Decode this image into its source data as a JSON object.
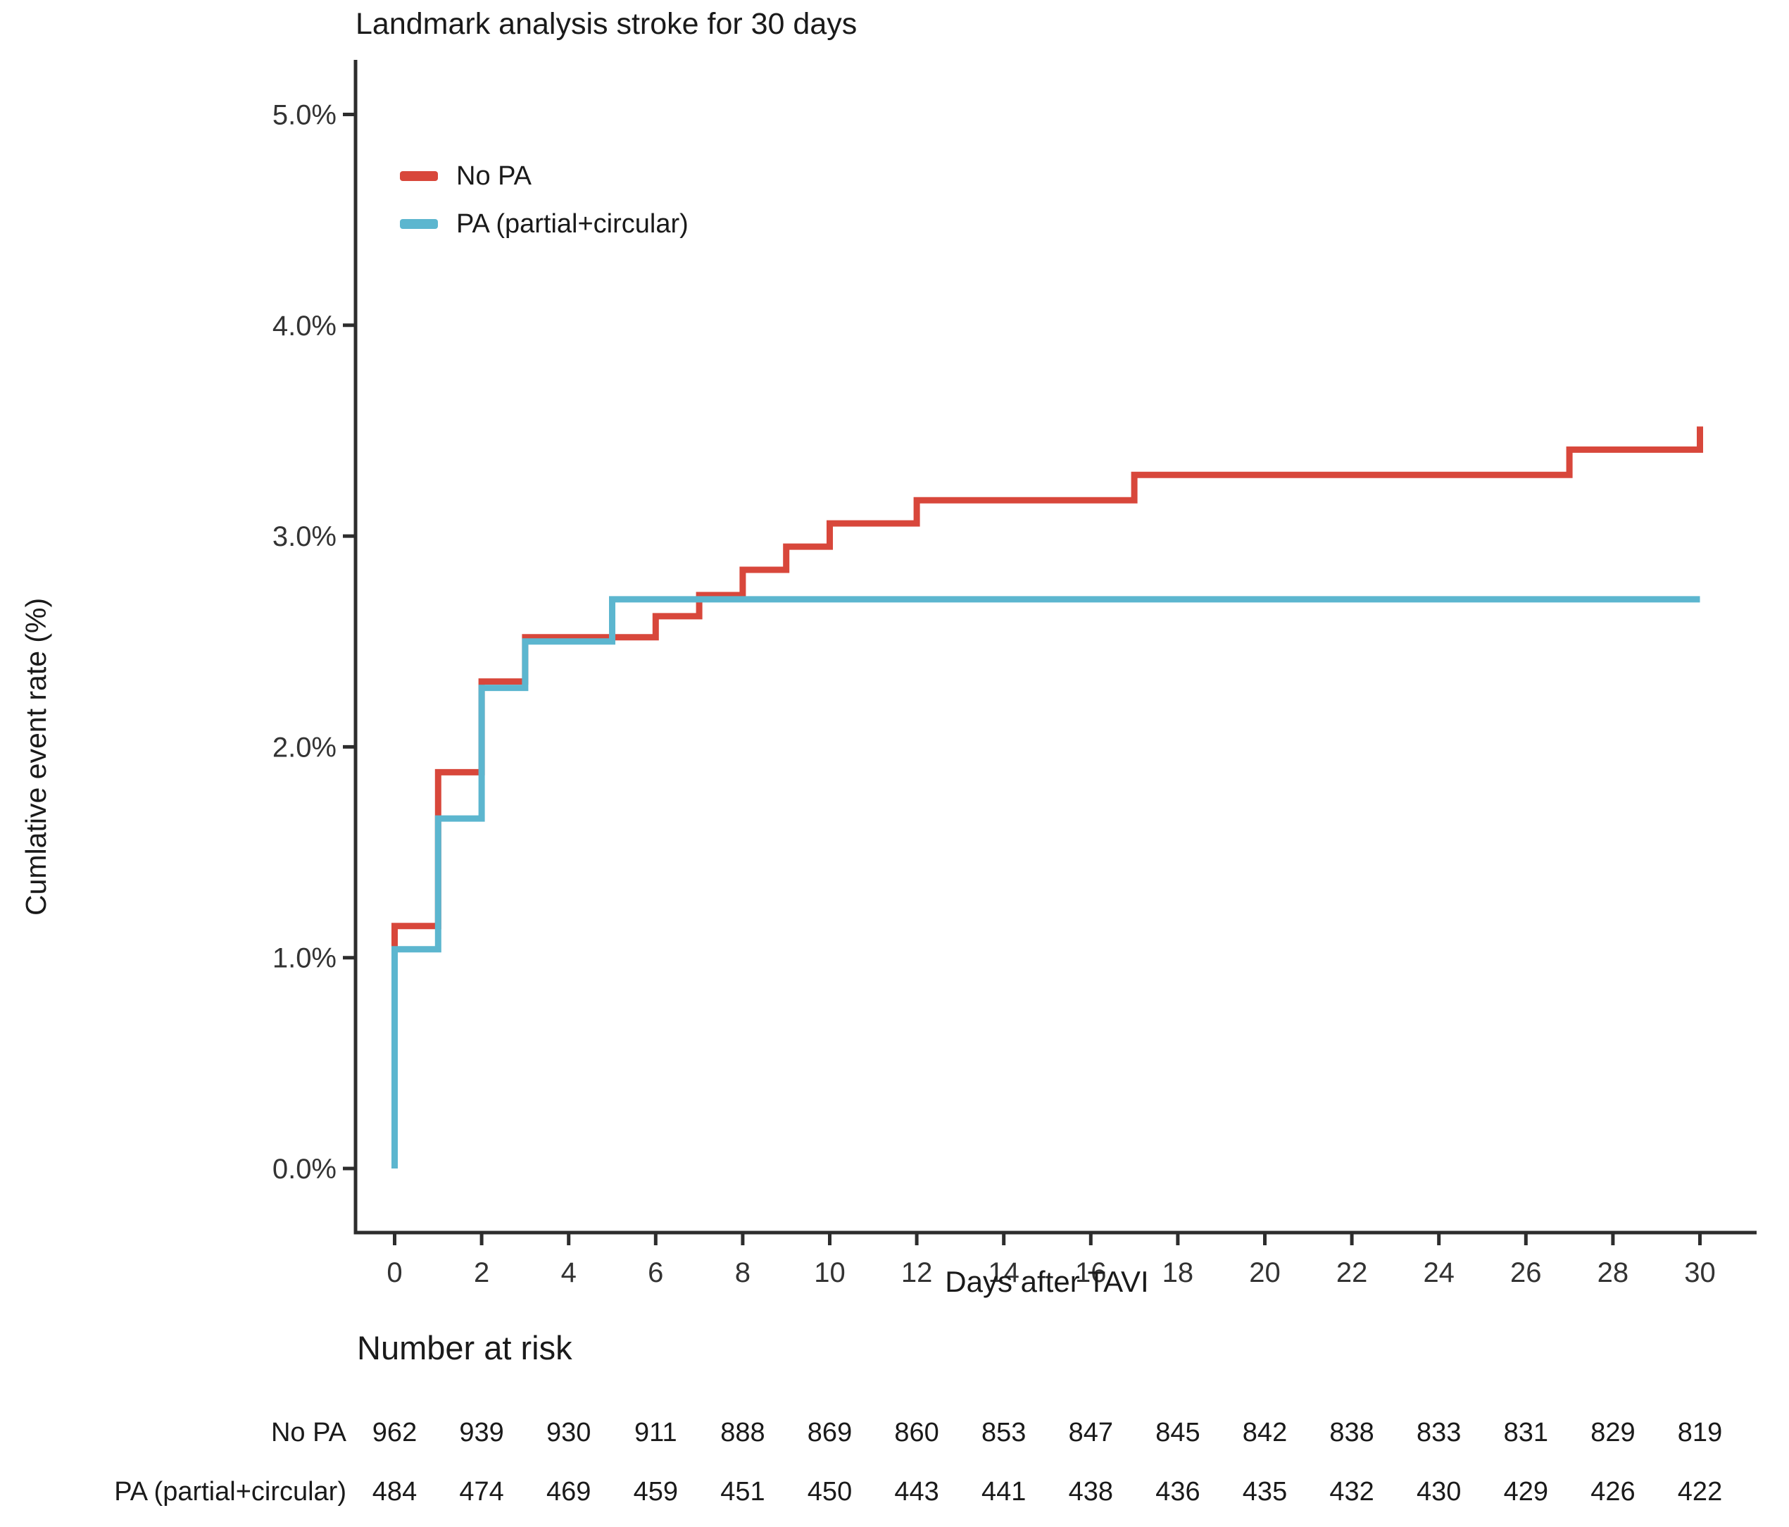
{
  "chart_data": {
    "type": "line",
    "subtype": "step",
    "title": "Landmark analysis stroke for 30 days",
    "xlabel": "Days after TAVI",
    "ylabel": "Cumlative event rate (%)",
    "xlim": [
      0,
      30
    ],
    "ylim": [
      0,
      5
    ],
    "x_ticks": [
      0,
      2,
      4,
      6,
      8,
      10,
      12,
      14,
      16,
      18,
      20,
      22,
      24,
      26,
      28,
      30
    ],
    "y_ticks": [
      0,
      1,
      2,
      3,
      4,
      5
    ],
    "y_tick_labels": [
      "0.0%",
      "1.0%",
      "2.0%",
      "3.0%",
      "4.0%",
      "5.0%"
    ],
    "grid": false,
    "legend_position": "inside-top-left",
    "axis_color": "#2d2d2d",
    "series": [
      {
        "name": "No PA",
        "color": "#d8473b",
        "points": [
          [
            0,
            0
          ],
          [
            0,
            1.15
          ],
          [
            1,
            1.15
          ],
          [
            1,
            1.88
          ],
          [
            2,
            1.88
          ],
          [
            2,
            2.31
          ],
          [
            3,
            2.31
          ],
          [
            3,
            2.52
          ],
          [
            6,
            2.52
          ],
          [
            6,
            2.62
          ],
          [
            7,
            2.62
          ],
          [
            7,
            2.72
          ],
          [
            8,
            2.72
          ],
          [
            8,
            2.84
          ],
          [
            9,
            2.84
          ],
          [
            9,
            2.95
          ],
          [
            10,
            2.95
          ],
          [
            10,
            3.06
          ],
          [
            12,
            3.06
          ],
          [
            12,
            3.17
          ],
          [
            17,
            3.17
          ],
          [
            17,
            3.29
          ],
          [
            27,
            3.29
          ],
          [
            27,
            3.41
          ],
          [
            30,
            3.41
          ],
          [
            30,
            3.52
          ]
        ]
      },
      {
        "name": "PA (partial+circular)",
        "color": "#5cb6cf",
        "points": [
          [
            0,
            0
          ],
          [
            0,
            1.04
          ],
          [
            1,
            1.04
          ],
          [
            1,
            1.66
          ],
          [
            2,
            1.66
          ],
          [
            2,
            2.28
          ],
          [
            3,
            2.28
          ],
          [
            3,
            2.5
          ],
          [
            5,
            2.5
          ],
          [
            5,
            2.7
          ],
          [
            30,
            2.7
          ]
        ]
      }
    ],
    "number_at_risk": {
      "heading": "Number at risk",
      "days": [
        0,
        2,
        4,
        6,
        8,
        10,
        12,
        14,
        16,
        18,
        20,
        22,
        24,
        26,
        28,
        30
      ],
      "rows": [
        {
          "label": "No PA",
          "values": [
            962,
            939,
            930,
            911,
            888,
            869,
            860,
            853,
            847,
            845,
            842,
            838,
            833,
            831,
            829,
            819
          ]
        },
        {
          "label": "PA (partial+circular)",
          "values": [
            484,
            474,
            469,
            459,
            451,
            450,
            443,
            441,
            438,
            436,
            435,
            432,
            430,
            429,
            426,
            422
          ]
        }
      ]
    }
  }
}
